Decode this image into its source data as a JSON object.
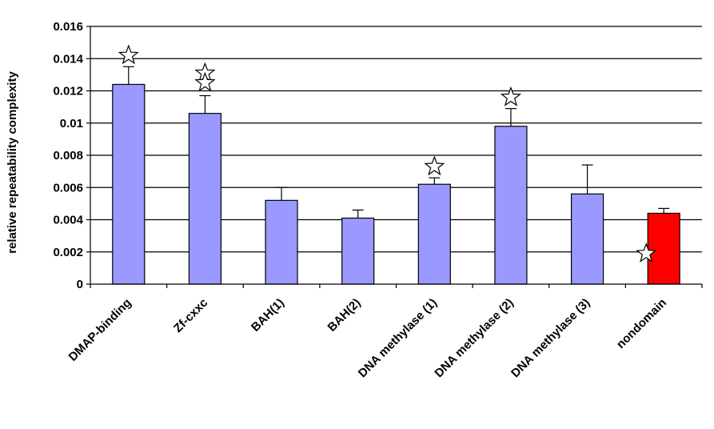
{
  "chart_data": {
    "type": "bar",
    "title": "",
    "xlabel": "",
    "ylabel": "relative repeatability complexity",
    "ylim": [
      0,
      0.016
    ],
    "yticks": [
      0,
      0.002,
      0.004,
      0.006,
      0.008,
      0.01,
      0.012,
      0.014,
      0.016
    ],
    "ytick_labels": [
      "0",
      "0.002",
      "0.004",
      "0.006",
      "0.008",
      "0.01",
      "0.012",
      "0.014",
      "0.016"
    ],
    "grid": true,
    "categories": [
      "DMAP-binding",
      "Zf-cxxc",
      "BAH(1)",
      "BAH(2)",
      "DNA methylase (1)",
      "DNA methylase (2)",
      "DNA methylase (3)",
      "nondomain"
    ],
    "values": [
      0.0124,
      0.0106,
      0.0052,
      0.0041,
      0.0062,
      0.0098,
      0.0056,
      0.0044
    ],
    "errors": [
      0.0011,
      0.0011,
      0.0008,
      0.0005,
      0.0004,
      0.0011,
      0.0018,
      0.0003
    ],
    "bar_colors": [
      "#9999ff",
      "#9999ff",
      "#9999ff",
      "#9999ff",
      "#9999ff",
      "#9999ff",
      "#9999ff",
      "#ff0000"
    ],
    "stars": [
      {
        "category": "DMAP-binding",
        "y": 0.0142
      },
      {
        "category": "Zf-cxxc",
        "y": 0.0131
      },
      {
        "category": "Zf-cxxc",
        "y": 0.0125
      },
      {
        "category": "DNA methylase (1)",
        "y": 0.0073
      },
      {
        "category": "DNA methylase (2)",
        "y": 0.0116
      },
      {
        "category": "nondomain",
        "y": 0.0019
      }
    ]
  },
  "colors": {
    "default_bar": "#9999ff",
    "highlight_bar": "#ff0000",
    "grid": "#000000",
    "star_fill": "#ffffff",
    "star_stroke": "#000000"
  }
}
